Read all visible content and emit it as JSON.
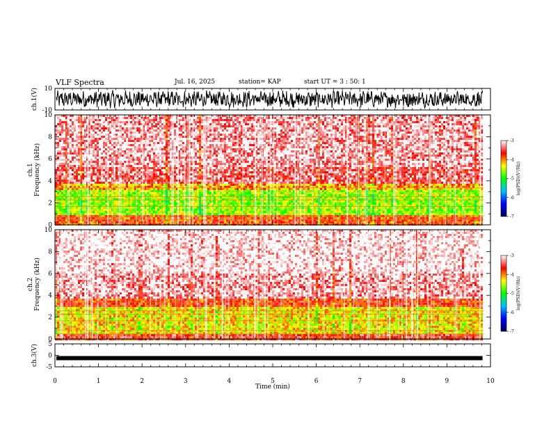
{
  "header": {
    "title": "VLF Spectra",
    "date": "Jul. 16, 2025",
    "station": "station= KAP",
    "start": "start UT =  3 : 50: 1"
  },
  "chart_data": [
    {
      "type": "line",
      "name": "ch1-waveform",
      "ylabel": "ch.1(V)",
      "ylim": [
        -10,
        10
      ],
      "yticks": [
        "10",
        "-10"
      ],
      "xlim": [
        0,
        10
      ]
    },
    {
      "type": "heatmap",
      "name": "ch1-spectrogram",
      "ylabel_line1": "ch.1",
      "ylabel_line2": "Frequency (kHz)",
      "ylim": [
        0,
        10
      ],
      "yticks": [
        "0",
        "2",
        "4",
        "6",
        "8",
        "10"
      ],
      "xlim": [
        0,
        9.8
      ],
      "bands": [
        {
          "from": 0.0,
          "to": 1.0,
          "level": -3.8
        },
        {
          "from": 1.0,
          "to": 3.3,
          "level": -4.6
        },
        {
          "from": 3.3,
          "to": 3.8,
          "level": -4.1
        },
        {
          "from": 3.8,
          "to": 5.4,
          "level": -3.4
        },
        {
          "from": 5.4,
          "to": 10.0,
          "level": -3.2
        }
      ]
    },
    {
      "type": "heatmap",
      "name": "ch2-spectrogram",
      "ylabel_line1": "ch.2",
      "ylabel_line2": "Frequency (kHz)",
      "ylim": [
        0,
        10
      ],
      "yticks": [
        "0",
        "2",
        "4",
        "6",
        "8",
        "10"
      ],
      "xlim": [
        0,
        9.8
      ],
      "bands": [
        {
          "from": 0.0,
          "to": 0.6,
          "level": -3.6
        },
        {
          "from": 0.6,
          "to": 3.1,
          "level": -4.3
        },
        {
          "from": 3.1,
          "to": 3.8,
          "level": -3.7
        },
        {
          "from": 3.8,
          "to": 6.0,
          "level": -3.2
        },
        {
          "from": 6.0,
          "to": 10.0,
          "level": -3.0
        }
      ]
    },
    {
      "type": "line",
      "name": "ch3-waveform",
      "ylabel": "ch.3(V)",
      "ylim": [
        -5,
        5
      ],
      "yticks": [
        "5",
        "0",
        "-5"
      ],
      "center_level": -1.2,
      "xlim": [
        0,
        9.8
      ]
    }
  ],
  "x_axis": {
    "label": "Time (min)",
    "ticks": [
      "0",
      "1",
      "2",
      "3",
      "4",
      "5",
      "6",
      "7",
      "8",
      "9",
      "10"
    ],
    "range": [
      0,
      10
    ]
  },
  "colorbar": {
    "label": "log(PSD)(V²/Hz)",
    "ticks": [
      "-3",
      "-4",
      "-5",
      "-6",
      "-7"
    ],
    "range": [
      -7,
      -3
    ],
    "colors": [
      "#000060",
      "#0000ff",
      "#00c0ff",
      "#00ff00",
      "#ffff00",
      "#ff0000",
      "#ffffff"
    ]
  }
}
